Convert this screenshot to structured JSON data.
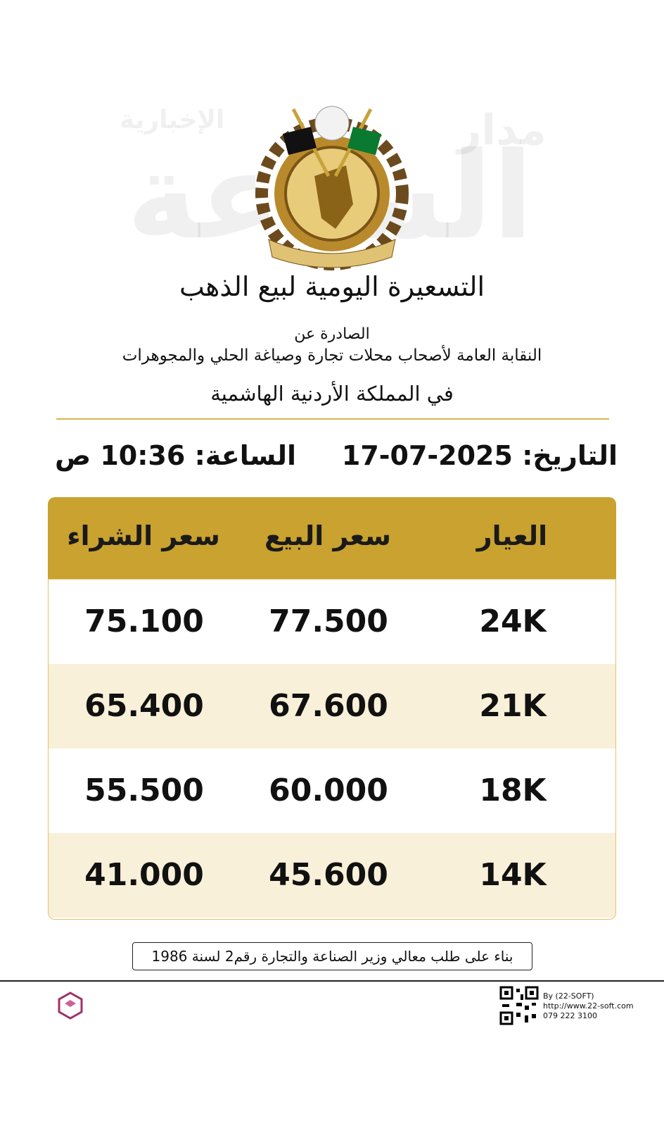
{
  "header": {
    "title": "التسعيرة اليومية لبيع الذهب",
    "issued_by": "الصادرة عن",
    "organization": "النقابة العامة لأصحاب محلات تجارة وصياغة الحلي والمجوهرات",
    "country": "في المملكة الأردنية الهاشمية"
  },
  "date_line": {
    "date_label": "التاريخ:",
    "date": "17-07-2025",
    "time_label": "الساعة:",
    "time": "10:36 ص"
  },
  "table": {
    "headers": [
      "العيار",
      "سعر البيع",
      "سعر الشراء"
    ],
    "rows": [
      [
        "24K",
        "77.500",
        "75.100"
      ],
      [
        "21K",
        "67.600",
        "65.400"
      ],
      [
        "18K",
        "60.000",
        "55.500"
      ],
      [
        "14K",
        "45.600",
        "41.000"
      ]
    ]
  },
  "note": "بناء على طلب معالي وزير الصناعة والتجارة رقم2 لسنة 1986",
  "footer": {
    "credits": [
      "By (22-SOFT)",
      "http://www.22-soft.com",
      "079 222 3100"
    ]
  },
  "watermark": [
    "مدار",
    "الساعة",
    "الإخبارية"
  ]
}
